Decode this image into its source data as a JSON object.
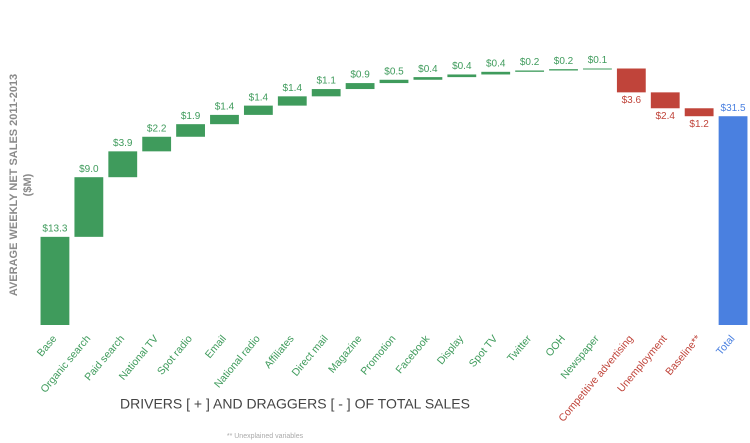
{
  "chart_data": {
    "type": "waterfall",
    "y_label": [
      "AVERAGE WEEKLY NET SALES 2011-2013",
      "($M)"
    ],
    "x_label": "DRIVERS [ + ] AND DRAGGERS [ - ] OF TOTAL SALES",
    "footnote": "** Unexplained variables",
    "categories": [
      "Base",
      "Organic search",
      "Paid search",
      "National TV",
      "Spot radio",
      "Email",
      "National radio",
      "Affiliates",
      "Direct mail",
      "Magazine",
      "Promotion",
      "Facebook",
      "Display",
      "Spot TV",
      "Twitter",
      "OOH",
      "Newspaper",
      "Competitive advertising",
      "Unemployment",
      "Baseline**",
      "Total"
    ],
    "values": [
      13.3,
      9.0,
      3.9,
      2.2,
      1.9,
      1.4,
      1.4,
      1.4,
      1.1,
      0.9,
      0.5,
      0.4,
      0.4,
      0.4,
      0.2,
      0.2,
      0.1,
      -3.6,
      -2.4,
      -1.2,
      31.5
    ],
    "value_labels": [
      "$13.3",
      "$9.0",
      "$3.9",
      "$2.2",
      "$1.9",
      "$1.4",
      "$1.4",
      "$1.4",
      "$1.1",
      "$0.9",
      "$0.5",
      "$0.4",
      "$0.4",
      "$0.4",
      "$0.2",
      "$0.2",
      "$0.1",
      "$3.6",
      "$2.4",
      "$1.2",
      "$31.5"
    ],
    "colors": {
      "increase": "#3f9b5c",
      "decrease": "#c0443a",
      "total": "#4a80e0"
    },
    "ylim": [
      0,
      43
    ]
  }
}
